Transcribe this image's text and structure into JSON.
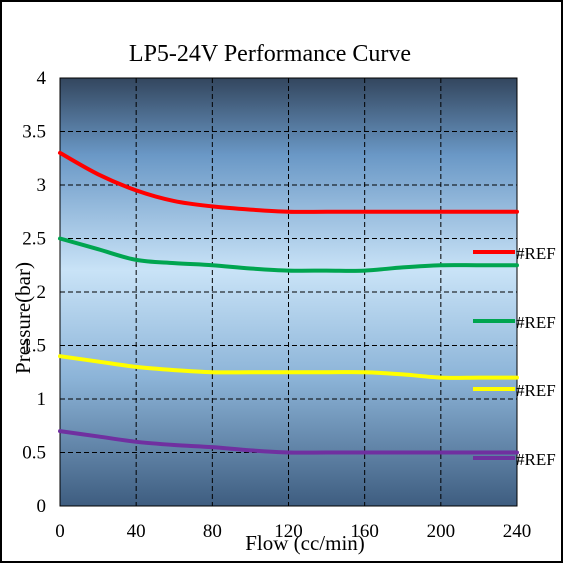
{
  "chart_data": {
    "type": "line",
    "title": "LP5-24V Performance Curve",
    "xlabel": "Flow (cc/min)",
    "ylabel": "Pressure(bar)",
    "xlim": [
      0,
      240
    ],
    "ylim": [
      0,
      4
    ],
    "x_ticks": [
      "0",
      "40",
      "80",
      "120",
      "160",
      "200",
      "240"
    ],
    "y_ticks": [
      "0",
      "0.5",
      "1",
      "1.5",
      "2",
      "2.5",
      "3",
      "3.5",
      "4"
    ],
    "grid": true,
    "legend_placement": "right",
    "series": [
      {
        "name": "#REF",
        "color": "#ff0000",
        "x": [
          0,
          20,
          40,
          60,
          80,
          100,
          120,
          140,
          160,
          180,
          200,
          220,
          240
        ],
        "y": [
          3.3,
          3.1,
          2.95,
          2.85,
          2.8,
          2.77,
          2.75,
          2.75,
          2.75,
          2.75,
          2.75,
          2.75,
          2.75
        ]
      },
      {
        "name": "#REF",
        "color": "#00a550",
        "x": [
          0,
          20,
          40,
          60,
          80,
          100,
          120,
          140,
          160,
          180,
          200,
          220,
          240
        ],
        "y": [
          2.5,
          2.4,
          2.3,
          2.27,
          2.25,
          2.22,
          2.2,
          2.2,
          2.2,
          2.23,
          2.25,
          2.25,
          2.25
        ]
      },
      {
        "name": "#REF",
        "color": "#ffff00",
        "x": [
          0,
          20,
          40,
          60,
          80,
          100,
          120,
          140,
          160,
          180,
          200,
          220,
          240
        ],
        "y": [
          1.4,
          1.35,
          1.3,
          1.27,
          1.25,
          1.25,
          1.25,
          1.25,
          1.25,
          1.23,
          1.2,
          1.2,
          1.2
        ]
      },
      {
        "name": "#REF",
        "color": "#7030a0",
        "x": [
          0,
          20,
          40,
          60,
          80,
          100,
          120,
          140,
          160,
          180,
          200,
          220,
          240
        ],
        "y": [
          0.7,
          0.65,
          0.6,
          0.57,
          0.55,
          0.52,
          0.5,
          0.5,
          0.5,
          0.5,
          0.5,
          0.5,
          0.5
        ]
      }
    ]
  }
}
